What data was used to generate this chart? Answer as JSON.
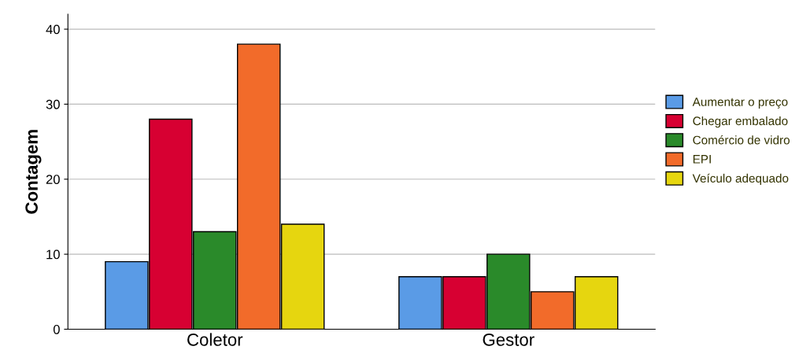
{
  "chart_data": {
    "type": "bar",
    "ylabel": "Contagem",
    "categories": [
      "Coletor",
      "Gestor"
    ],
    "series": [
      {
        "name": "Aumentar o preço",
        "color": "#5a9be6",
        "values": [
          9,
          7
        ]
      },
      {
        "name": "Chegar embalado",
        "color": "#d70032",
        "values": [
          28,
          7
        ]
      },
      {
        "name": "Comércio de vidro",
        "color": "#2a8a2a",
        "values": [
          13,
          10
        ]
      },
      {
        "name": "EPI",
        "color": "#f26b2a",
        "values": [
          38,
          5
        ]
      },
      {
        "name": "Veículo adequado",
        "color": "#e6d60f",
        "values": [
          14,
          7
        ]
      }
    ],
    "ylim": [
      0,
      42
    ],
    "yticks": [
      0,
      10,
      20,
      30,
      40
    ],
    "grid": "y",
    "legend": "right"
  }
}
